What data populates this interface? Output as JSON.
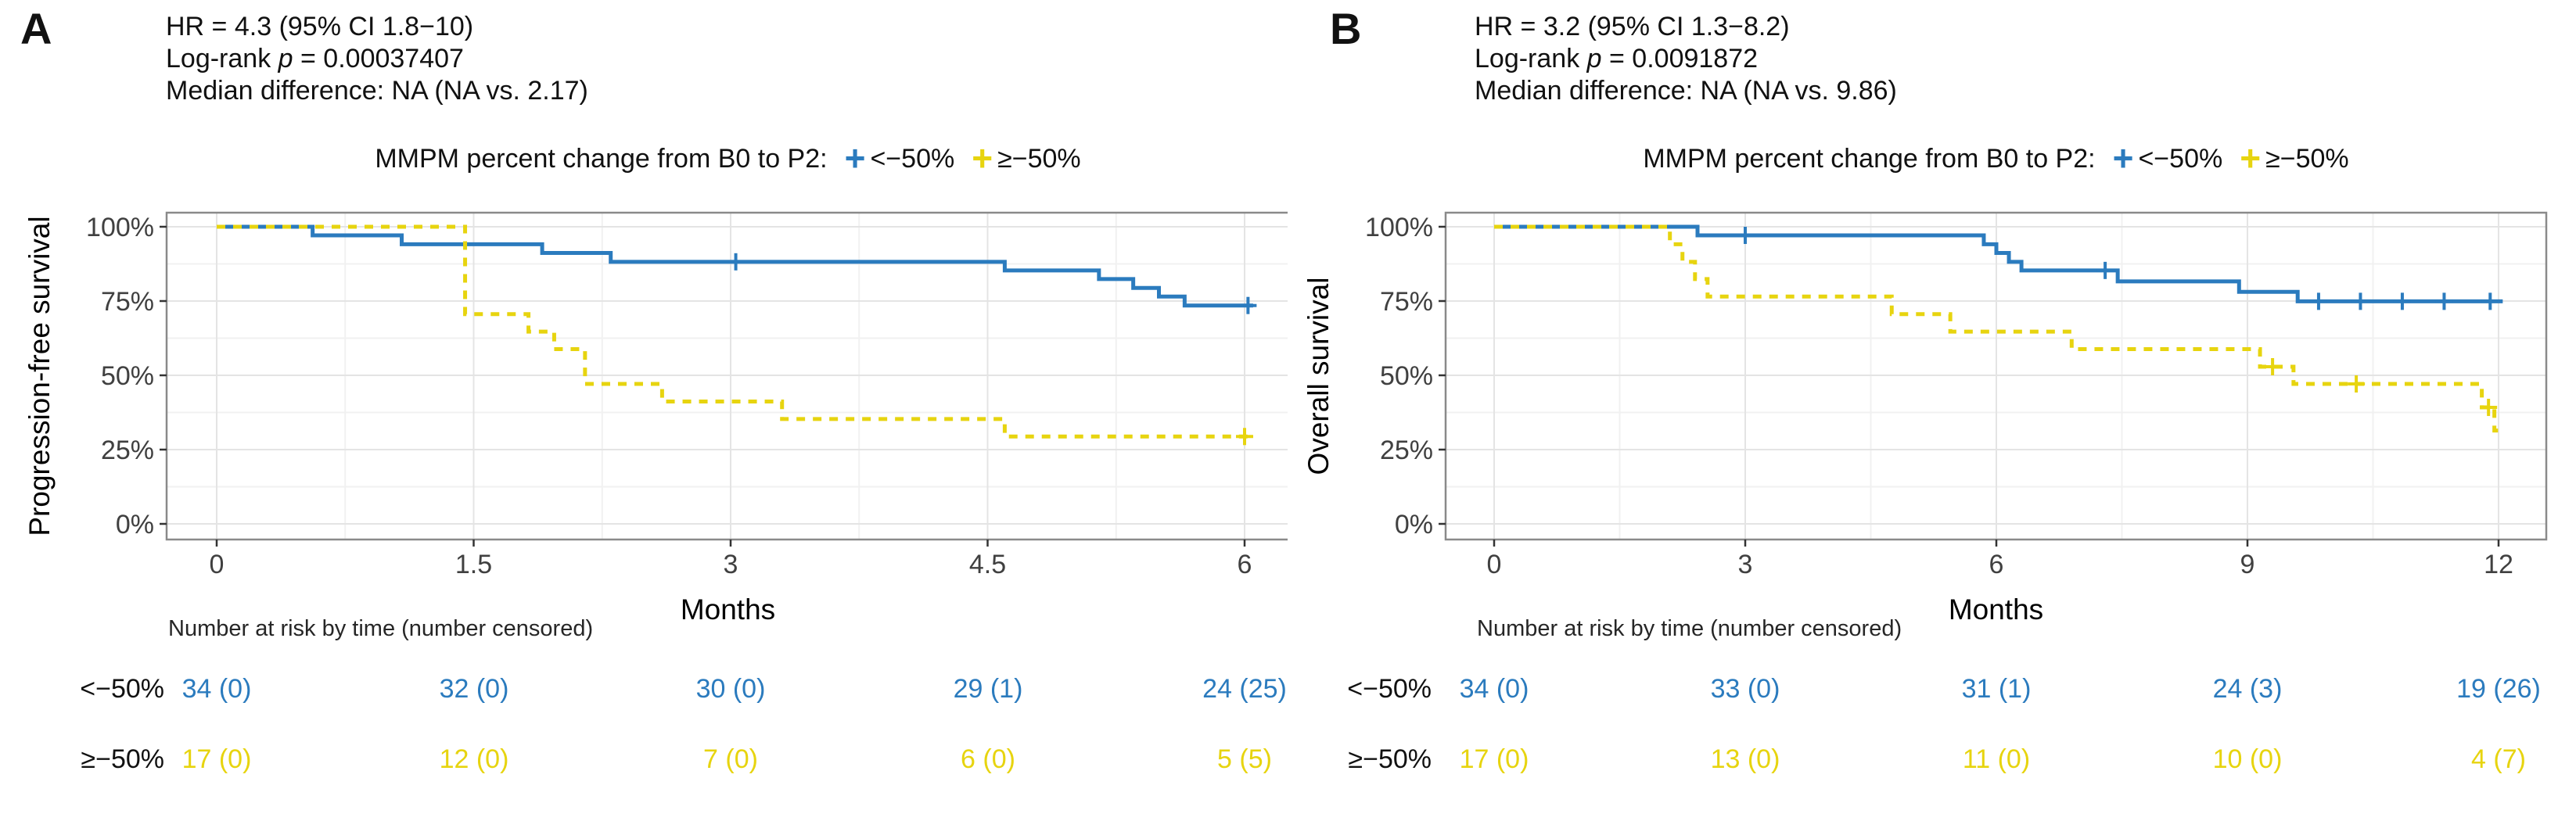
{
  "figure": {
    "background": "#ffffff",
    "risk_table_note": "Number at risk by time (number censored)"
  },
  "panels": [
    {
      "label": "A",
      "stats": {
        "hr": "HR = 4.3 (95% CI 1.8−10)",
        "logrank_pre": "Log-rank ",
        "logrank_p": "p",
        "logrank_post": " = 0.00037407",
        "median": "Median difference: NA (NA vs. 2.17)"
      },
      "legend": {
        "title": "MMPM percent change from B0 to P2:",
        "items": [
          {
            "label": "<−50%"
          },
          {
            "label": "≥−50%"
          }
        ]
      },
      "risk_table": {
        "title": "Number at risk by time (number censored)",
        "rows": [
          {
            "label": "<−50%",
            "color": "#2B7BBE",
            "values": [
              "34 (0)",
              "32 (0)",
              "30 (0)",
              "29 (1)",
              "24 (25)"
            ]
          },
          {
            "label": "≥−50%",
            "color": "#E7D40F",
            "values": [
              "17 (0)",
              "12 (0)",
              "7 (0)",
              "6 (0)",
              "5 (5)"
            ]
          }
        ]
      }
    },
    {
      "label": "B",
      "stats": {
        "hr": "HR = 3.2 (95% CI 1.3−8.2)",
        "logrank_pre": "Log-rank ",
        "logrank_p": "p",
        "logrank_post": " = 0.0091872",
        "median": "Median difference: NA (NA vs. 9.86)"
      },
      "legend": {
        "title": "MMPM percent change from B0 to P2:",
        "items": [
          {
            "label": "<−50%"
          },
          {
            "label": "≥−50%"
          }
        ]
      },
      "risk_table": {
        "title": "Number at risk by time (number censored)",
        "rows": [
          {
            "label": "<−50%",
            "color": "#2B7BBE",
            "values": [
              "34 (0)",
              "33 (0)",
              "31 (1)",
              "24 (3)",
              "19 (26)"
            ]
          },
          {
            "label": "≥−50%",
            "color": "#E7D40F",
            "values": [
              "17 (0)",
              "13 (0)",
              "11 (0)",
              "10 (0)",
              "4 (7)"
            ]
          }
        ]
      }
    }
  ],
  "chart_data": [
    {
      "type": "line",
      "subtype": "kaplan-meier-step",
      "panel": "A",
      "title": "MMPM percent change from B0 to P2:",
      "xlabel": "Months",
      "ylabel": "Progression-free survival",
      "xlim": [
        0,
        6.1
      ],
      "ylim": [
        0,
        100
      ],
      "grid": true,
      "legend_position": "top",
      "xticks": [
        {
          "v": 0,
          "label": "0"
        },
        {
          "v": 1.5,
          "label": "1.5"
        },
        {
          "v": 3,
          "label": "3"
        },
        {
          "v": 4.5,
          "label": "4.5"
        },
        {
          "v": 6,
          "label": "6"
        }
      ],
      "yticks": [
        {
          "v": 0,
          "label": "0%"
        },
        {
          "v": 25,
          "label": "25%"
        },
        {
          "v": 50,
          "label": "50%"
        },
        {
          "v": 75,
          "label": "75%"
        },
        {
          "v": 100,
          "label": "100%"
        }
      ],
      "series": [
        {
          "name": "<−50%",
          "color": "#2B7BBE",
          "linestyle": "solid",
          "steps": [
            [
              0,
              100
            ],
            [
              0.56,
              97.1
            ],
            [
              1.08,
              94.1
            ],
            [
              1.9,
              91.2
            ],
            [
              2.3,
              88.2
            ],
            [
              4.6,
              85.3
            ],
            [
              5.15,
              82.4
            ],
            [
              5.35,
              79.4
            ],
            [
              5.5,
              76.5
            ],
            [
              5.65,
              73.5
            ]
          ],
          "end": 6.05,
          "censors": [
            [
              3.03,
              88.2
            ],
            [
              6.02,
              73.5
            ]
          ]
        },
        {
          "name": "≥−50%",
          "color": "#E7D40F",
          "linestyle": "dashed",
          "steps": [
            [
              0,
              100
            ],
            [
              1.45,
              70.6
            ],
            [
              1.82,
              64.7
            ],
            [
              1.97,
              58.8
            ],
            [
              2.15,
              47.1
            ],
            [
              2.6,
              41.2
            ],
            [
              3.3,
              35.3
            ],
            [
              4.6,
              29.4
            ]
          ],
          "end": 6.02,
          "censors": [
            [
              6.0,
              29.4
            ]
          ]
        }
      ]
    },
    {
      "type": "line",
      "subtype": "kaplan-meier-step",
      "panel": "B",
      "title": "MMPM percent change from B0 to P2:",
      "xlabel": "Months",
      "ylabel": "Overall survival",
      "xlim": [
        0,
        12.1
      ],
      "ylim": [
        0,
        100
      ],
      "grid": true,
      "legend_position": "top",
      "xticks": [
        {
          "v": 0,
          "label": "0"
        },
        {
          "v": 3,
          "label": "3"
        },
        {
          "v": 6,
          "label": "6"
        },
        {
          "v": 9,
          "label": "9"
        },
        {
          "v": 12,
          "label": "12"
        }
      ],
      "yticks": [
        {
          "v": 0,
          "label": "0%"
        },
        {
          "v": 25,
          "label": "25%"
        },
        {
          "v": 50,
          "label": "50%"
        },
        {
          "v": 75,
          "label": "75%"
        },
        {
          "v": 100,
          "label": "100%"
        }
      ],
      "series": [
        {
          "name": "<−50%",
          "color": "#2B7BBE",
          "linestyle": "solid",
          "steps": [
            [
              0,
              100
            ],
            [
              2.43,
              97.1
            ],
            [
              5.85,
              94.1
            ],
            [
              6.0,
              91.2
            ],
            [
              6.15,
              88.2
            ],
            [
              6.3,
              85.3
            ],
            [
              7.45,
              81.6
            ],
            [
              8.9,
              78.1
            ],
            [
              9.6,
              74.9
            ]
          ],
          "end": 12.05,
          "censors": [
            [
              3.0,
              97.1
            ],
            [
              7.3,
              85.3
            ],
            [
              9.85,
              74.9
            ],
            [
              10.35,
              74.9
            ],
            [
              10.85,
              74.9
            ],
            [
              11.35,
              74.9
            ],
            [
              11.9,
              74.9
            ]
          ]
        },
        {
          "name": "≥−50%",
          "color": "#E7D40F",
          "linestyle": "dashed",
          "steps": [
            [
              0,
              100
            ],
            [
              2.1,
              94.1
            ],
            [
              2.25,
              88.2
            ],
            [
              2.4,
              82.4
            ],
            [
              2.55,
              76.5
            ],
            [
              4.75,
              70.6
            ],
            [
              5.45,
              64.7
            ],
            [
              6.9,
              58.8
            ],
            [
              9.15,
              52.9
            ],
            [
              9.55,
              47.1
            ],
            [
              11.8,
              39.2
            ],
            [
              11.95,
              31.4
            ]
          ],
          "end": 12.0,
          "censors": [
            [
              9.3,
              52.9
            ],
            [
              10.3,
              47.1
            ],
            [
              11.88,
              39.2
            ]
          ]
        }
      ]
    }
  ]
}
